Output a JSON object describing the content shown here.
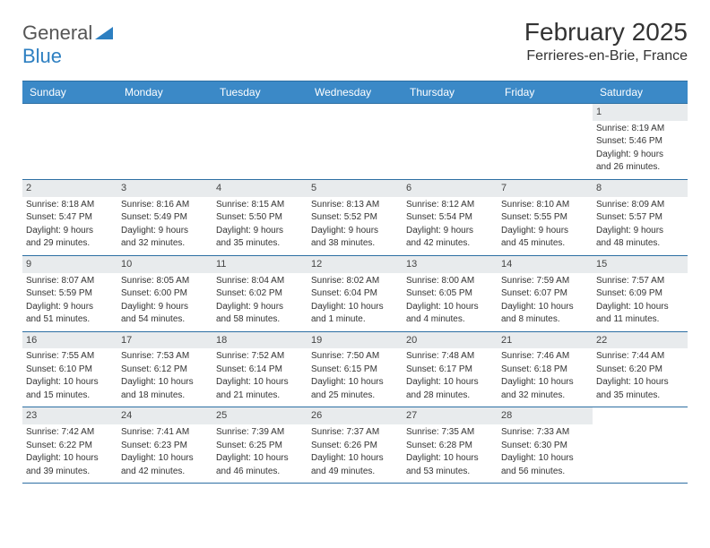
{
  "brand": {
    "word1": "General",
    "word2": "Blue"
  },
  "title": "February 2025",
  "location": "Ferrieres-en-Brie, France",
  "colors": {
    "header_bg": "#3b89c7",
    "header_text": "#ffffff",
    "border": "#2d6fa3",
    "daynum_bg": "#e8ebed",
    "text": "#333333",
    "logo_gray": "#555555",
    "logo_blue": "#2d7fc1",
    "page_bg": "#ffffff"
  },
  "day_names": [
    "Sunday",
    "Monday",
    "Tuesday",
    "Wednesday",
    "Thursday",
    "Friday",
    "Saturday"
  ],
  "weeks": [
    [
      {
        "blank": true
      },
      {
        "blank": true
      },
      {
        "blank": true
      },
      {
        "blank": true
      },
      {
        "blank": true
      },
      {
        "blank": true
      },
      {
        "n": "1",
        "sr": "Sunrise: 8:19 AM",
        "ss": "Sunset: 5:46 PM",
        "d1": "Daylight: 9 hours",
        "d2": "and 26 minutes."
      }
    ],
    [
      {
        "n": "2",
        "sr": "Sunrise: 8:18 AM",
        "ss": "Sunset: 5:47 PM",
        "d1": "Daylight: 9 hours",
        "d2": "and 29 minutes."
      },
      {
        "n": "3",
        "sr": "Sunrise: 8:16 AM",
        "ss": "Sunset: 5:49 PM",
        "d1": "Daylight: 9 hours",
        "d2": "and 32 minutes."
      },
      {
        "n": "4",
        "sr": "Sunrise: 8:15 AM",
        "ss": "Sunset: 5:50 PM",
        "d1": "Daylight: 9 hours",
        "d2": "and 35 minutes."
      },
      {
        "n": "5",
        "sr": "Sunrise: 8:13 AM",
        "ss": "Sunset: 5:52 PM",
        "d1": "Daylight: 9 hours",
        "d2": "and 38 minutes."
      },
      {
        "n": "6",
        "sr": "Sunrise: 8:12 AM",
        "ss": "Sunset: 5:54 PM",
        "d1": "Daylight: 9 hours",
        "d2": "and 42 minutes."
      },
      {
        "n": "7",
        "sr": "Sunrise: 8:10 AM",
        "ss": "Sunset: 5:55 PM",
        "d1": "Daylight: 9 hours",
        "d2": "and 45 minutes."
      },
      {
        "n": "8",
        "sr": "Sunrise: 8:09 AM",
        "ss": "Sunset: 5:57 PM",
        "d1": "Daylight: 9 hours",
        "d2": "and 48 minutes."
      }
    ],
    [
      {
        "n": "9",
        "sr": "Sunrise: 8:07 AM",
        "ss": "Sunset: 5:59 PM",
        "d1": "Daylight: 9 hours",
        "d2": "and 51 minutes."
      },
      {
        "n": "10",
        "sr": "Sunrise: 8:05 AM",
        "ss": "Sunset: 6:00 PM",
        "d1": "Daylight: 9 hours",
        "d2": "and 54 minutes."
      },
      {
        "n": "11",
        "sr": "Sunrise: 8:04 AM",
        "ss": "Sunset: 6:02 PM",
        "d1": "Daylight: 9 hours",
        "d2": "and 58 minutes."
      },
      {
        "n": "12",
        "sr": "Sunrise: 8:02 AM",
        "ss": "Sunset: 6:04 PM",
        "d1": "Daylight: 10 hours",
        "d2": "and 1 minute."
      },
      {
        "n": "13",
        "sr": "Sunrise: 8:00 AM",
        "ss": "Sunset: 6:05 PM",
        "d1": "Daylight: 10 hours",
        "d2": "and 4 minutes."
      },
      {
        "n": "14",
        "sr": "Sunrise: 7:59 AM",
        "ss": "Sunset: 6:07 PM",
        "d1": "Daylight: 10 hours",
        "d2": "and 8 minutes."
      },
      {
        "n": "15",
        "sr": "Sunrise: 7:57 AM",
        "ss": "Sunset: 6:09 PM",
        "d1": "Daylight: 10 hours",
        "d2": "and 11 minutes."
      }
    ],
    [
      {
        "n": "16",
        "sr": "Sunrise: 7:55 AM",
        "ss": "Sunset: 6:10 PM",
        "d1": "Daylight: 10 hours",
        "d2": "and 15 minutes."
      },
      {
        "n": "17",
        "sr": "Sunrise: 7:53 AM",
        "ss": "Sunset: 6:12 PM",
        "d1": "Daylight: 10 hours",
        "d2": "and 18 minutes."
      },
      {
        "n": "18",
        "sr": "Sunrise: 7:52 AM",
        "ss": "Sunset: 6:14 PM",
        "d1": "Daylight: 10 hours",
        "d2": "and 21 minutes."
      },
      {
        "n": "19",
        "sr": "Sunrise: 7:50 AM",
        "ss": "Sunset: 6:15 PM",
        "d1": "Daylight: 10 hours",
        "d2": "and 25 minutes."
      },
      {
        "n": "20",
        "sr": "Sunrise: 7:48 AM",
        "ss": "Sunset: 6:17 PM",
        "d1": "Daylight: 10 hours",
        "d2": "and 28 minutes."
      },
      {
        "n": "21",
        "sr": "Sunrise: 7:46 AM",
        "ss": "Sunset: 6:18 PM",
        "d1": "Daylight: 10 hours",
        "d2": "and 32 minutes."
      },
      {
        "n": "22",
        "sr": "Sunrise: 7:44 AM",
        "ss": "Sunset: 6:20 PM",
        "d1": "Daylight: 10 hours",
        "d2": "and 35 minutes."
      }
    ],
    [
      {
        "n": "23",
        "sr": "Sunrise: 7:42 AM",
        "ss": "Sunset: 6:22 PM",
        "d1": "Daylight: 10 hours",
        "d2": "and 39 minutes."
      },
      {
        "n": "24",
        "sr": "Sunrise: 7:41 AM",
        "ss": "Sunset: 6:23 PM",
        "d1": "Daylight: 10 hours",
        "d2": "and 42 minutes."
      },
      {
        "n": "25",
        "sr": "Sunrise: 7:39 AM",
        "ss": "Sunset: 6:25 PM",
        "d1": "Daylight: 10 hours",
        "d2": "and 46 minutes."
      },
      {
        "n": "26",
        "sr": "Sunrise: 7:37 AM",
        "ss": "Sunset: 6:26 PM",
        "d1": "Daylight: 10 hours",
        "d2": "and 49 minutes."
      },
      {
        "n": "27",
        "sr": "Sunrise: 7:35 AM",
        "ss": "Sunset: 6:28 PM",
        "d1": "Daylight: 10 hours",
        "d2": "and 53 minutes."
      },
      {
        "n": "28",
        "sr": "Sunrise: 7:33 AM",
        "ss": "Sunset: 6:30 PM",
        "d1": "Daylight: 10 hours",
        "d2": "and 56 minutes."
      },
      {
        "blank": true
      }
    ]
  ]
}
